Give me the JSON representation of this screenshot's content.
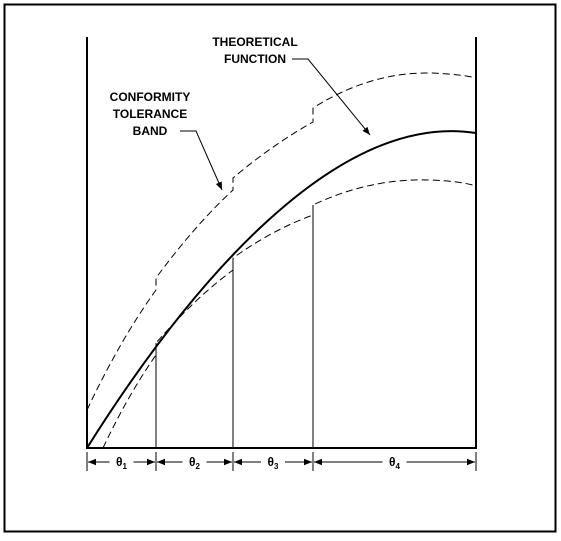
{
  "labels": {
    "theoretical_function": [
      "THEORETICAL",
      "FUNCTION"
    ],
    "tolerance_band": [
      "CONFORMITY",
      "TOLERANCE",
      "BAND"
    ]
  },
  "intervals": [
    {
      "symbol": "θ",
      "subscript": "1"
    },
    {
      "symbol": "θ",
      "subscript": "2"
    },
    {
      "symbol": "θ",
      "subscript": "3"
    },
    {
      "symbol": "θ",
      "subscript": "4"
    }
  ]
}
